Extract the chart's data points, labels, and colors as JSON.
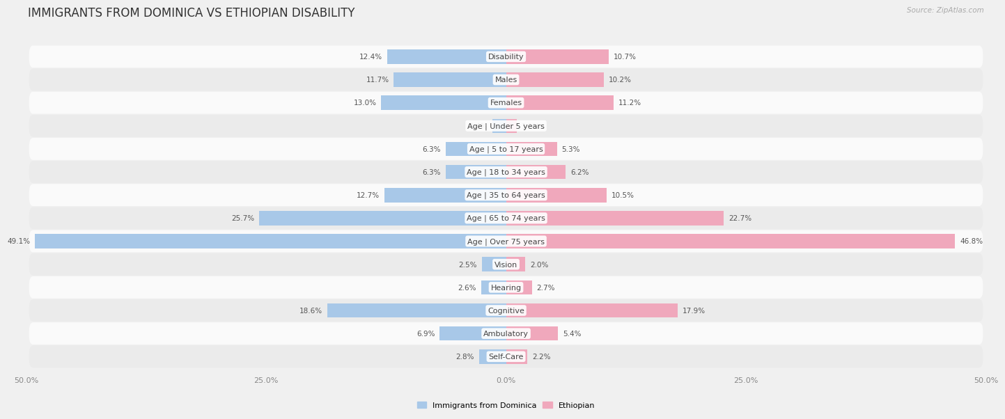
{
  "title": "IMMIGRANTS FROM DOMINICA VS ETHIOPIAN DISABILITY",
  "source": "Source: ZipAtlas.com",
  "categories": [
    "Disability",
    "Males",
    "Females",
    "Age | Under 5 years",
    "Age | 5 to 17 years",
    "Age | 18 to 34 years",
    "Age | 35 to 64 years",
    "Age | 65 to 74 years",
    "Age | Over 75 years",
    "Vision",
    "Hearing",
    "Cognitive",
    "Ambulatory",
    "Self-Care"
  ],
  "dominica_values": [
    12.4,
    11.7,
    13.0,
    1.4,
    6.3,
    6.3,
    12.7,
    25.7,
    49.1,
    2.5,
    2.6,
    18.6,
    6.9,
    2.8
  ],
  "ethiopian_values": [
    10.7,
    10.2,
    11.2,
    1.1,
    5.3,
    6.2,
    10.5,
    22.7,
    46.8,
    2.0,
    2.7,
    17.9,
    5.4,
    2.2
  ],
  "dominica_color": "#a8c8e8",
  "ethiopian_color": "#f0a8bc",
  "background_color": "#f0f0f0",
  "row_light_color": "#fafafa",
  "row_dark_color": "#ebebeb",
  "axis_limit": 50.0,
  "bar_height": 0.62,
  "title_fontsize": 12,
  "label_fontsize": 8,
  "tick_fontsize": 8,
  "value_fontsize": 7.5
}
